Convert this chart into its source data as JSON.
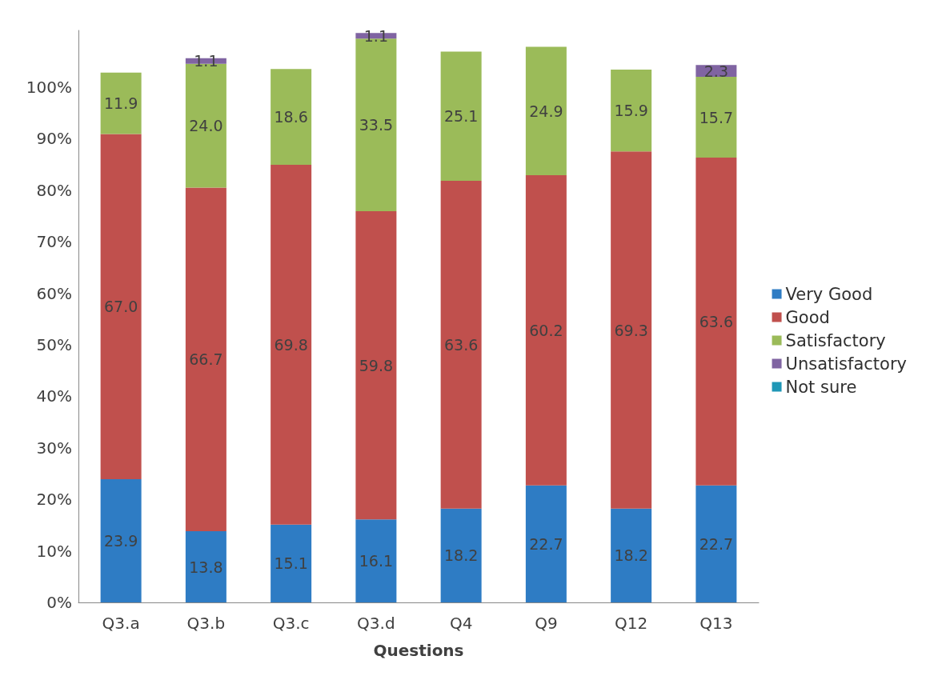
{
  "chart_data": {
    "type": "bar",
    "stacked": true,
    "xlabel": "Questions",
    "categories": [
      "Q3.a",
      "Q3.b",
      "Q3.c",
      "Q3.d",
      "Q4",
      "Q9",
      "Q12",
      "Q13"
    ],
    "series": [
      {
        "name": "Very Good",
        "color": "#2e7cc4",
        "values": [
          23.9,
          13.8,
          15.1,
          16.1,
          18.2,
          22.7,
          18.2,
          22.7
        ],
        "value_labels": [
          "23.9",
          "13.8",
          "15.1",
          "16.1",
          "18.2",
          "22.7",
          "18.2",
          "22.7"
        ]
      },
      {
        "name": "Good",
        "color": "#c0504d",
        "values": [
          67,
          66.7,
          69.8,
          59.8,
          63.6,
          60.2,
          69.3,
          63.6
        ],
        "value_labels": [
          "67.0",
          "66.7",
          "69.8",
          "59.8",
          "63.6",
          "60.2",
          "69.3",
          "63.6"
        ]
      },
      {
        "name": "Satisfactory",
        "color": "#9bbb59",
        "values": [
          11.9,
          24,
          18.6,
          33.5,
          25.1,
          24.9,
          15.9,
          15.7
        ],
        "value_labels": [
          "11.9",
          "24.0",
          "18.6",
          "33.5",
          "25.1",
          "24.9",
          "15.9",
          "15.7"
        ]
      },
      {
        "name": "Unsatisfactory",
        "color": "#8064a2",
        "values": [
          null,
          1.1,
          null,
          1.1,
          null,
          null,
          null,
          2.3
        ],
        "value_labels": [
          null,
          "1.1",
          null,
          "1.1",
          null,
          null,
          null,
          "2.3"
        ]
      },
      {
        "name": "Not sure",
        "color": "#1f97b6",
        "values": [
          null,
          null,
          null,
          null,
          null,
          null,
          null,
          null
        ]
      }
    ],
    "ylim": [
      0,
      111
    ],
    "yticks": [
      {
        "value": 0,
        "label": "0%"
      },
      {
        "value": 10,
        "label": "10%"
      },
      {
        "value": 20,
        "label": "20%"
      },
      {
        "value": 30,
        "label": "30%"
      },
      {
        "value": 40,
        "label": "40%"
      },
      {
        "value": 50,
        "label": "50%"
      },
      {
        "value": 60,
        "label": "60%"
      },
      {
        "value": 70,
        "label": "70%"
      },
      {
        "value": 80,
        "label": "80%"
      },
      {
        "value": 90,
        "label": "90%"
      },
      {
        "value": 100,
        "label": "100%"
      }
    ],
    "grid": false,
    "legend": "right"
  }
}
